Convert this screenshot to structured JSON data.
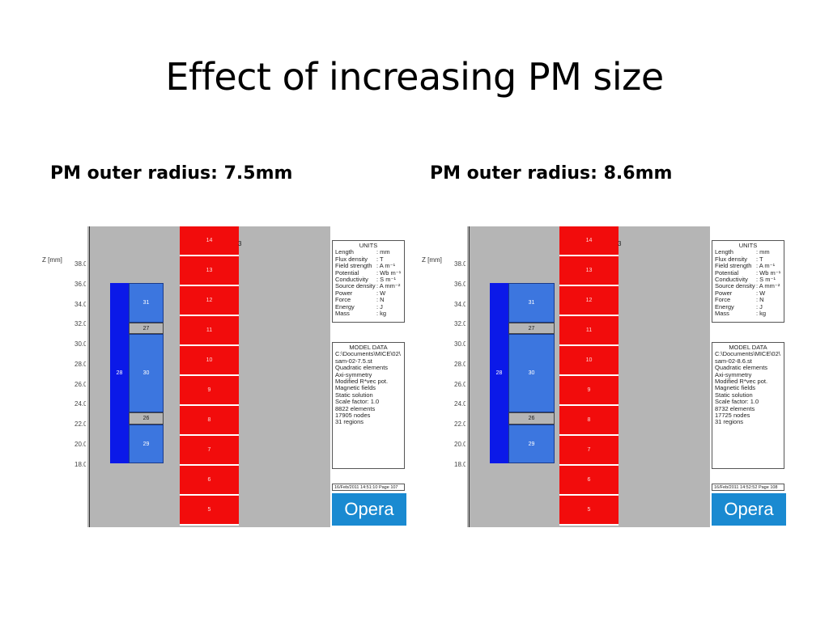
{
  "title": "Effect of increasing PM size",
  "panels": [
    {
      "caption": "PM outer radius: 7.5mm",
      "z_axis_label": "Z [mm]",
      "y_ticks": [
        "38.0",
        "36.0",
        "34.0",
        "32.0",
        "30.0",
        "28.0",
        "26.0",
        "24.0",
        "22.0",
        "20.0",
        "18.0"
      ],
      "regions": {
        "r28": "28",
        "r31": "31",
        "r27": "27",
        "r30": "30",
        "r26": "26",
        "r29": "29",
        "red": [
          "14",
          "13",
          "12",
          "11",
          "10",
          "9",
          "8",
          "7",
          "6",
          "5"
        ],
        "red_side": "3"
      },
      "units": {
        "heading": "UNITS",
        "rows": [
          {
            "name": "Length",
            "unit": ": mm"
          },
          {
            "name": "Flux density",
            "unit": ": T"
          },
          {
            "name": "Field strength",
            "unit": ": A m⁻¹"
          },
          {
            "name": "Potential",
            "unit": ": Wb m⁻¹"
          },
          {
            "name": "Conductivity",
            "unit": ": S m⁻¹"
          },
          {
            "name": "Source density",
            "unit": ": A mm⁻²"
          },
          {
            "name": "Power",
            "unit": ": W"
          },
          {
            "name": "Force",
            "unit": ": N"
          },
          {
            "name": "Energy",
            "unit": ": J"
          },
          {
            "name": "Mass",
            "unit": ": kg"
          }
        ]
      },
      "model": {
        "heading": "MODEL DATA",
        "lines": [
          "C:\\Documents\\MICE\\02\\",
          "sam-02-7.5.st",
          "Quadratic elements",
          "Axi-symmetry",
          "Modified R*vec pot.",
          "Magnetic fields",
          "Static solution",
          "Scale factor: 1.0",
          "8822 elements",
          "17905 nodes",
          "31 regions"
        ]
      },
      "date_line": "16/Feb/2011 14:51:10 Page 107",
      "logo": "Opera"
    },
    {
      "caption": "PM outer radius: 8.6mm",
      "z_axis_label": "Z [mm]",
      "y_ticks": [
        "38.0",
        "36.0",
        "34.0",
        "32.0",
        "30.0",
        "28.0",
        "26.0",
        "24.0",
        "22.0",
        "20.0",
        "18.0"
      ],
      "regions": {
        "r28": "28",
        "r31": "31",
        "r27": "27",
        "r30": "30",
        "r26": "26",
        "r29": "29",
        "red": [
          "14",
          "13",
          "12",
          "11",
          "10",
          "9",
          "8",
          "7",
          "6",
          "5"
        ],
        "red_side": "3"
      },
      "units": {
        "heading": "UNITS",
        "rows": [
          {
            "name": "Length",
            "unit": ": mm"
          },
          {
            "name": "Flux density",
            "unit": ": T"
          },
          {
            "name": "Field strength",
            "unit": ": A m⁻¹"
          },
          {
            "name": "Potential",
            "unit": ": Wb m⁻¹"
          },
          {
            "name": "Conductivity",
            "unit": ": S m⁻¹"
          },
          {
            "name": "Source density",
            "unit": ": A mm⁻²"
          },
          {
            "name": "Power",
            "unit": ": W"
          },
          {
            "name": "Force",
            "unit": ": N"
          },
          {
            "name": "Energy",
            "unit": ": J"
          },
          {
            "name": "Mass",
            "unit": ": kg"
          }
        ]
      },
      "model": {
        "heading": "MODEL DATA",
        "lines": [
          "C:\\Documents\\MICE\\02\\",
          "sam-02-8.6.st",
          "Quadratic elements",
          "Axi-symmetry",
          "Modified R*vec pot.",
          "Magnetic fields",
          "Static solution",
          "Scale factor: 1.0",
          "8732 elements",
          "17725 nodes",
          "31 regions"
        ]
      },
      "date_line": "16/Feb/2011 14:52:52 Page 108",
      "logo": "Opera"
    }
  ]
}
